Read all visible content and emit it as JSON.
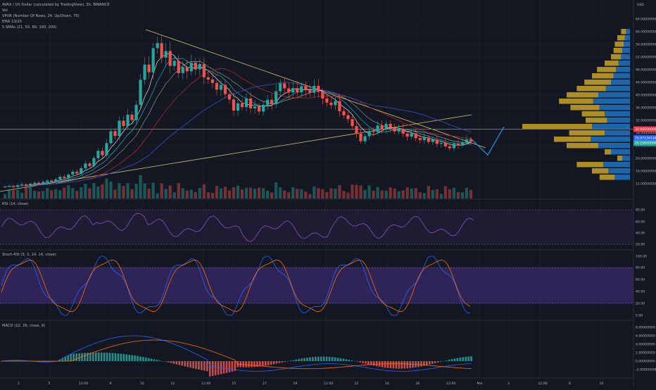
{
  "header": {
    "symbol_line": "AVAX / US Dollar (calculated by TradingView), 3h, BINANCE",
    "indicators": [
      "Vol",
      "VPVR (Number Of Rows, 24, Up/Down, 70)",
      "EMA 13/20",
      "5 SMAs (21, 50, 80, 100, 200)"
    ],
    "currency": "USD"
  },
  "price_axis": {
    "ticks": [
      "64.00000000",
      "60.00000000",
      "56.00000000",
      "52.00000000",
      "48.00000000",
      "44.00000000",
      "40.00000000",
      "36.00000000",
      "32.00000000",
      "28.00000000",
      "24.00000000",
      "20.00000000",
      "16.00000000",
      "12.00000000"
    ],
    "markers": [
      {
        "text": "30.00000000",
        "color": "#f23645"
      },
      {
        "text": "26.97234140",
        "color": "#2962ff"
      },
      {
        "text": "25.25000000",
        "color": "#26a69a"
      }
    ]
  },
  "rsi_pane": {
    "title": "RSI (14, close)",
    "ticks": [
      "80.00",
      "60.00",
      "40.00",
      "20.00"
    ]
  },
  "stoch_pane": {
    "title": "Stoch RSI (3, 3, 14, 14, close)",
    "ticks": [
      "100.00",
      "80.00",
      "60.00",
      "40.00",
      "20.00",
      "0.00"
    ]
  },
  "macd_pane": {
    "title": "MACD (12, 26, close, 9)",
    "ticks": [
      "8.00000000",
      "6.00000000",
      "4.00000000",
      "2.00000000",
      "0.00000000",
      "-2.00000000"
    ]
  },
  "time_axis": {
    "ticks": [
      "1",
      "5",
      "12:00",
      "8",
      "10",
      "12",
      "12:00",
      "15",
      "17",
      "19",
      "12:00",
      "22",
      "24",
      "26",
      "12:00",
      "Mar",
      "3",
      "12:00",
      "8",
      "10"
    ]
  },
  "chart_data": {
    "type": "candlestick",
    "price_range": [
      10,
      66
    ],
    "horizontal_line": 29.9,
    "close_prices": [
      11.1,
      11.3,
      11.0,
      11.5,
      11.8,
      11.4,
      12.0,
      12.3,
      11.9,
      12.6,
      13.0,
      12.7,
      13.4,
      14.2,
      13.8,
      14.9,
      15.8,
      15.2,
      16.9,
      18.4,
      17.6,
      20.1,
      22.4,
      21.0,
      24.8,
      28.6,
      27.1,
      31.9,
      30.2,
      33.8,
      32.1,
      36.9,
      44.8,
      49.6,
      47.2,
      54.8,
      56.4,
      51.8,
      53.9,
      49.2,
      50.8,
      46.9,
      48.8,
      47.5,
      50.2,
      48.1,
      49.8,
      45.6,
      44.9,
      43.8,
      41.7,
      43.2,
      40.3,
      38.6,
      35.1,
      37.4,
      36.2,
      38.9,
      35.8,
      36.4,
      34.8,
      36.9,
      38.5,
      37.1,
      41.2,
      43.7,
      42.1,
      40.8,
      42.2,
      40.9,
      42.8,
      41.5,
      40.7,
      42.9,
      41.0,
      38.9,
      37.6,
      36.8,
      38.1,
      34.9,
      33.6,
      32.4,
      30.2,
      27.8,
      25.4,
      27.0,
      28.6,
      28.3,
      30.4,
      29.1,
      30.9,
      29.7,
      28.5,
      29.3,
      27.8,
      26.9,
      27.9,
      26.4,
      25.8,
      26.6,
      25.2,
      25.9,
      24.6,
      24.9,
      23.8,
      23.2,
      24.7,
      24.1,
      25.1,
      26.0,
      25.3
    ]
  }
}
